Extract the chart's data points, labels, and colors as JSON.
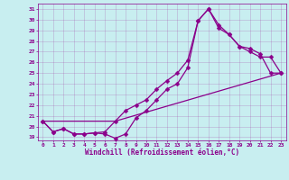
{
  "xlabel": "Windchill (Refroidissement éolien,°C)",
  "bg_color": "#c8eef0",
  "line_color": "#8b008b",
  "xlim": [
    -0.5,
    23.5
  ],
  "ylim": [
    18.7,
    31.5
  ],
  "xticks": [
    0,
    1,
    2,
    3,
    4,
    5,
    6,
    7,
    8,
    9,
    10,
    11,
    12,
    13,
    14,
    15,
    16,
    17,
    18,
    19,
    20,
    21,
    22,
    23
  ],
  "yticks": [
    19,
    20,
    21,
    22,
    23,
    24,
    25,
    26,
    27,
    28,
    29,
    30,
    31
  ],
  "line1_x": [
    0,
    1,
    2,
    3,
    4,
    5,
    6,
    7,
    8,
    9,
    10,
    11,
    12,
    13,
    14,
    15,
    16,
    17,
    18,
    19,
    20,
    21,
    22,
    23
  ],
  "line1_y": [
    20.5,
    19.5,
    19.8,
    19.3,
    19.3,
    19.4,
    19.3,
    18.9,
    19.3,
    20.8,
    21.5,
    22.5,
    23.5,
    24.0,
    25.5,
    29.9,
    31.0,
    29.5,
    28.6,
    27.5,
    27.0,
    26.5,
    26.5,
    25.0
  ],
  "line2_x": [
    0,
    1,
    2,
    3,
    4,
    5,
    6,
    7,
    8,
    9,
    10,
    11,
    12,
    13,
    14,
    15,
    16,
    17,
    18,
    19,
    20,
    21,
    22,
    23
  ],
  "line2_y": [
    20.5,
    19.5,
    19.8,
    19.3,
    19.3,
    19.4,
    19.5,
    20.5,
    21.5,
    22.0,
    22.5,
    23.5,
    24.3,
    25.0,
    26.2,
    29.9,
    31.0,
    29.2,
    28.6,
    27.5,
    27.3,
    26.8,
    25.0,
    25.0
  ],
  "line3_x": [
    0,
    7,
    23
  ],
  "line3_y": [
    20.5,
    20.5,
    25.0
  ],
  "grid_color": "#9b309b",
  "font_color": "#8b008b"
}
